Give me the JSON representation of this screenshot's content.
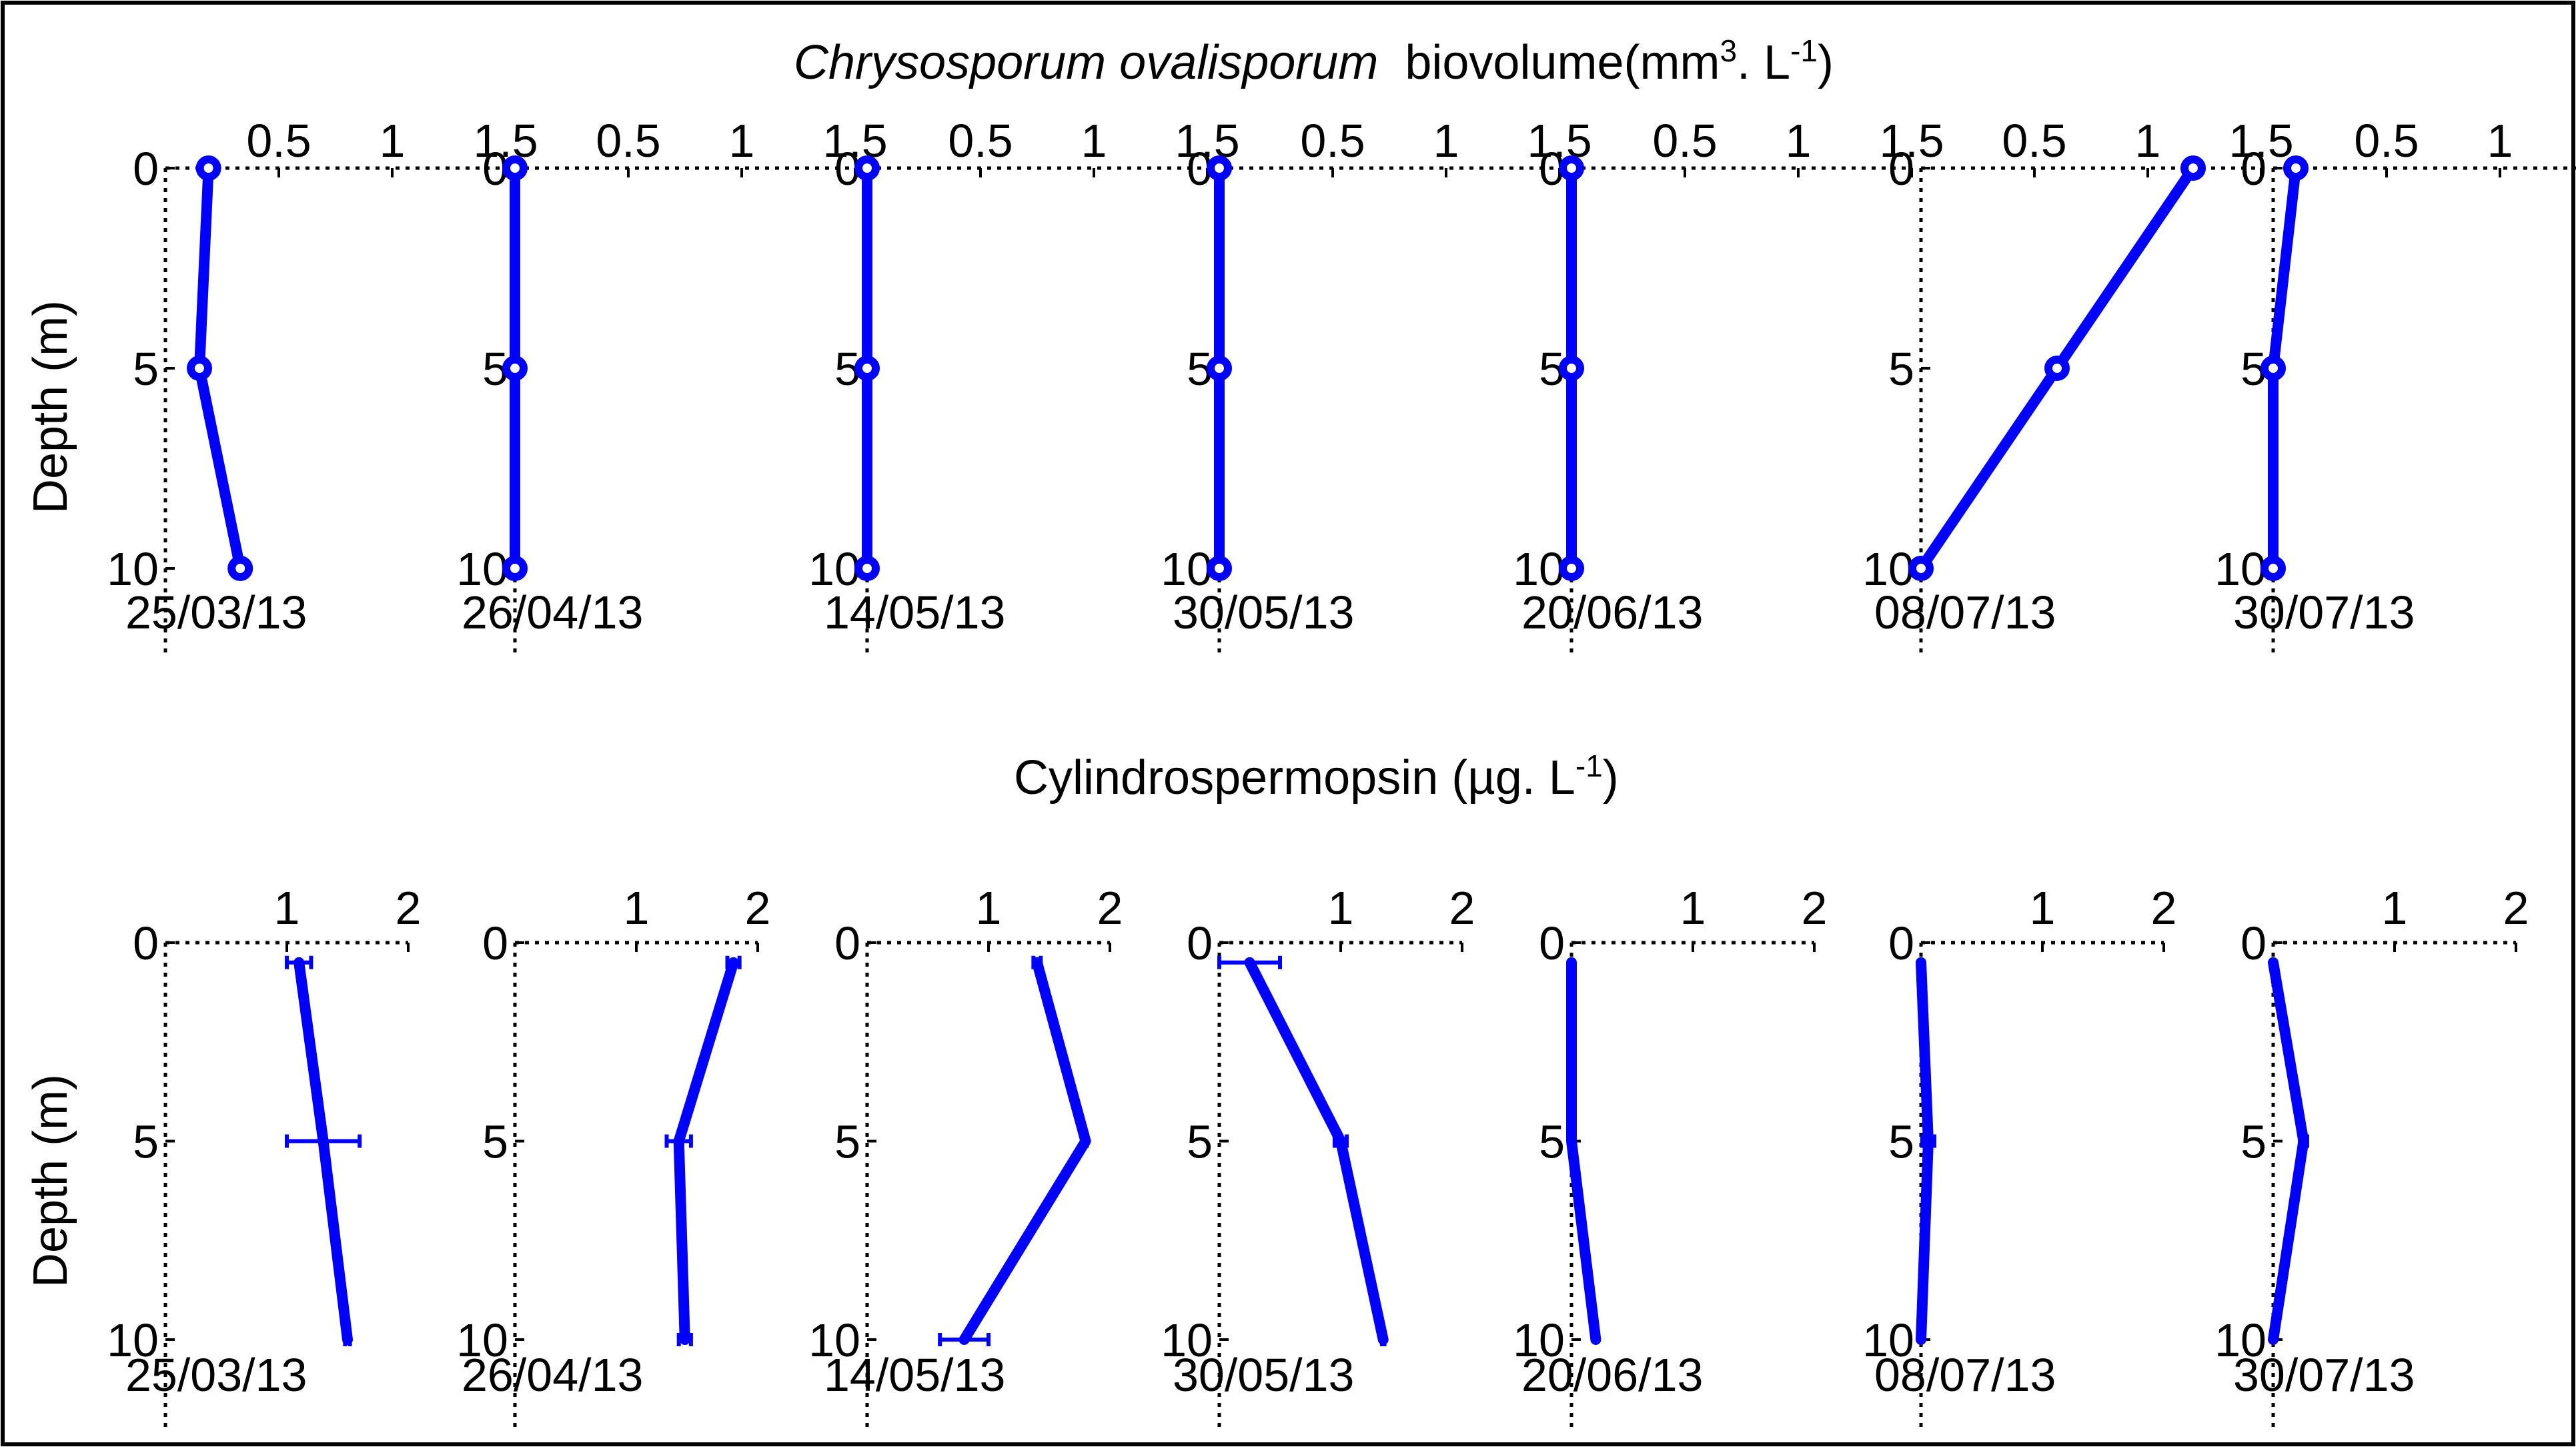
{
  "figure": {
    "accent_color": "#0000ff",
    "axis_color": "#000000",
    "top_title": {
      "species": "Chrysosporum ovalisporum",
      "quantity": "biovolume(mm",
      "sup1": "3",
      "middle": ". L",
      "sup2": "-1",
      "end": ")"
    },
    "bottom_title": {
      "quantity": "Cylindrospermopsin (µg. L",
      "sup": "-1",
      "end": ")"
    },
    "ylabel": "Depth (m)"
  },
  "chart_data": [
    {
      "type": "line",
      "title": "Chrysosporum ovalisporum biovolume(mm3. L-1)",
      "ylabel": "Depth (m)",
      "y_axis": "depth, inverted (0 at top)",
      "x_axis_position": "top",
      "xlim": [
        0,
        1.5
      ],
      "ylim": [
        0,
        12
      ],
      "xticks": [
        "0.5",
        "1",
        "1.5"
      ],
      "yticks": [
        "0",
        "5",
        "10"
      ],
      "grid": false,
      "marker": "open circle",
      "color": "#0000ff",
      "depths": [
        0,
        5,
        10
      ],
      "panels": [
        {
          "date": "25/03/13",
          "values": [
            0.19,
            0.15,
            0.33
          ]
        },
        {
          "date": "26/04/13",
          "values": [
            0.0,
            0.0,
            0.0
          ]
        },
        {
          "date": "14/05/13",
          "values": [
            0.0,
            0.0,
            0.0
          ]
        },
        {
          "date": "30/05/13",
          "values": [
            0.0,
            0.0,
            0.0
          ]
        },
        {
          "date": "20/06/13",
          "values": [
            0.0,
            0.0,
            0.0
          ]
        },
        {
          "date": "08/07/13",
          "values": [
            1.2,
            0.6,
            0.0
          ]
        },
        {
          "date": "30/07/13",
          "values": [
            0.1,
            0.0,
            0.0
          ]
        }
      ]
    },
    {
      "type": "line",
      "title": "Cylindrospermopsin (µg. L-1)",
      "ylabel": "Depth (m)",
      "y_axis": "depth, inverted (0 at top)",
      "x_axis_position": "top",
      "xlim": [
        0,
        2
      ],
      "ylim": [
        0,
        12
      ],
      "xticks": [
        "1",
        "2"
      ],
      "yticks": [
        "0",
        "5",
        "10"
      ],
      "grid": false,
      "error_bars": true,
      "color": "#0000ff",
      "depths": [
        0.5,
        5,
        10
      ],
      "panels": [
        {
          "date": "25/03/13",
          "values": [
            1.1,
            1.3,
            1.5
          ],
          "errors": [
            0.1,
            0.3,
            0.02
          ]
        },
        {
          "date": "26/04/13",
          "values": [
            1.8,
            1.35,
            1.4
          ],
          "errors": [
            0.05,
            0.1,
            0.05
          ]
        },
        {
          "date": "14/05/13",
          "values": [
            1.4,
            1.8,
            0.8
          ],
          "errors": [
            0.03,
            0.01,
            0.2
          ]
        },
        {
          "date": "30/05/13",
          "values": [
            0.25,
            1.0,
            1.35
          ],
          "errors": [
            0.25,
            0.05,
            0.01
          ]
        },
        {
          "date": "20/06/13",
          "values": [
            0.0,
            0.0,
            0.2
          ],
          "errors": [
            0.0,
            0.0,
            0.0
          ]
        },
        {
          "date": "08/07/13",
          "values": [
            0.0,
            0.06,
            0.0
          ],
          "errors": [
            0.0,
            0.05,
            0.0
          ]
        },
        {
          "date": "30/07/13",
          "values": [
            0.0,
            0.25,
            0.0
          ],
          "errors": [
            0.0,
            0.03,
            0.0
          ]
        }
      ]
    }
  ]
}
